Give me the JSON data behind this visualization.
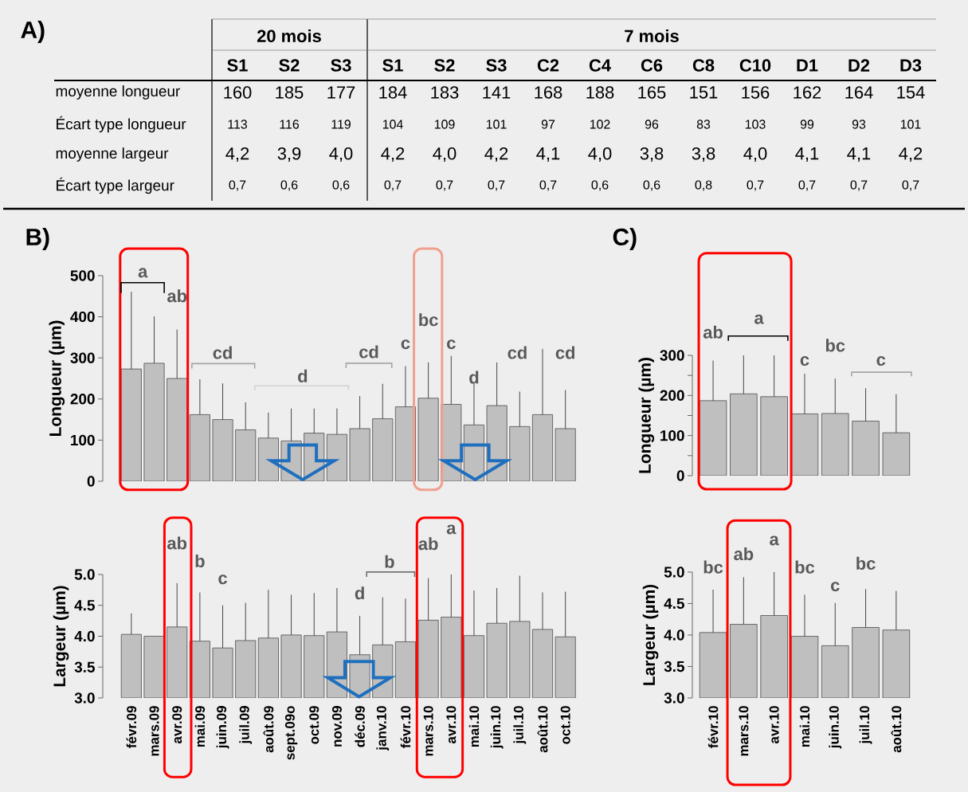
{
  "chart_data": [
    {
      "type": "other",
      "title": "A)",
      "data_labels": true,
      "categories": [
        "S1",
        "S2",
        "S3",
        "S1",
        "S2",
        "S3",
        "C2",
        "C4",
        "C6",
        "C8",
        "C10",
        "D1",
        "D2",
        "D3"
      ],
      "annotations": [
        "20 mois",
        "7 mois"
      ],
      "series": [
        {
          "name": "moyenne longueur",
          "values": [
            160,
            185,
            177,
            184,
            183,
            141,
            168,
            188,
            165,
            151,
            156,
            162,
            164,
            154
          ]
        },
        {
          "name": "Écart type longueur",
          "values": [
            113,
            116,
            119,
            104,
            109,
            101,
            97,
            102,
            96,
            83,
            103,
            99,
            93,
            101
          ]
        },
        {
          "name": "moyenne largeur",
          "values": [
            4.2,
            3.9,
            4.0,
            4.2,
            4.0,
            4.2,
            4.1,
            4.0,
            3.8,
            3.8,
            4.0,
            4.1,
            4.1,
            4.2
          ],
          "value_labels": [
            "4,2",
            "3,9",
            "4,0",
            "4,2",
            "4,0",
            "4,2",
            "4,1",
            "4,0",
            "3,8",
            "3,8",
            "4,0",
            "4,1",
            "4,1",
            "4,2"
          ]
        },
        {
          "name": "Écart type largeur",
          "values": [
            0.7,
            0.6,
            0.6,
            0.7,
            0.7,
            0.7,
            0.7,
            0.6,
            0.6,
            0.8,
            0.7,
            0.7,
            0.7,
            0.7
          ],
          "value_labels": [
            "0,7",
            "0,6",
            "0,6",
            "0,7",
            "0,7",
            "0,7",
            "0,7",
            "0,6",
            "0,6",
            "0,8",
            "0,7",
            "0,7",
            "0,7",
            "0,7"
          ]
        }
      ]
    },
    {
      "type": "bar",
      "title": "B)",
      "ylabel": "Longueur (µm)",
      "tick_labels": "y",
      "color": "#bfbfbf",
      "categories": [
        null,
        null,
        null,
        null,
        null,
        null,
        null,
        null,
        null,
        null,
        null,
        null,
        null,
        null,
        null,
        null,
        null,
        null,
        null,
        null
      ],
      "values": [
        273,
        287,
        250,
        162,
        150,
        125,
        105,
        98,
        117,
        114,
        128,
        152,
        181,
        202,
        187,
        137,
        184,
        133,
        162,
        128
      ],
      "errors": [
        [
          273,
          461
        ],
        [
          287,
          401
        ],
        [
          250,
          369
        ],
        [
          162,
          248
        ],
        [
          150,
          238
        ],
        [
          125,
          192
        ],
        [
          105,
          167
        ],
        [
          98,
          177
        ],
        [
          117,
          177
        ],
        [
          114,
          177
        ],
        [
          128,
          207
        ],
        [
          152,
          237
        ],
        [
          181,
          280
        ],
        [
          202,
          289
        ],
        [
          187,
          305
        ],
        [
          137,
          238
        ],
        [
          184,
          289
        ],
        [
          133,
          218
        ],
        [
          162,
          322
        ],
        [
          128,
          222
        ]
      ],
      "ylim": [
        0,
        500
      ],
      "yticks": [
        0,
        100,
        200,
        300,
        400,
        500
      ],
      "annotations": [
        "a",
        "ab",
        "cd",
        "d",
        "cd",
        "c",
        "bc",
        "c",
        "d",
        "cd",
        "cd"
      ]
    },
    {
      "type": "bar",
      "ylabel": "Largeur (µm)",
      "color": "#bfbfbf",
      "categories": [
        "févr.09",
        "mars.09",
        "avr.09",
        "mai.09",
        "juin.09",
        "juil.09",
        "août.09",
        "sept.09o",
        "oct.09",
        "nov.09",
        "déc.09",
        "janv.10",
        "févr.10",
        "mars.10",
        "avr.10",
        "mai.10",
        "juin.10",
        "juil.10",
        "août.10",
        "oct.10"
      ],
      "values": [
        4.03,
        4.0,
        4.15,
        3.92,
        3.81,
        3.93,
        3.97,
        4.02,
        4.01,
        4.07,
        3.7,
        3.86,
        3.91,
        4.26,
        4.31,
        4.01,
        4.21,
        4.24,
        4.11,
        3.99
      ],
      "errors": [
        [
          4.03,
          4.37
        ],
        null,
        [
          4.15,
          4.86
        ],
        [
          3.92,
          4.71
        ],
        [
          3.81,
          4.5
        ],
        [
          3.93,
          4.54
        ],
        [
          3.97,
          4.75
        ],
        [
          4.02,
          4.67
        ],
        [
          4.01,
          4.7
        ],
        [
          4.07,
          4.78
        ],
        [
          3.7,
          4.33
        ],
        [
          3.86,
          4.63
        ],
        [
          3.91,
          4.61
        ],
        [
          4.26,
          4.94
        ],
        [
          4.31,
          5.0
        ],
        [
          4.01,
          4.74
        ],
        [
          4.21,
          4.78
        ],
        [
          4.24,
          4.98
        ],
        [
          4.11,
          4.71
        ],
        [
          3.99,
          4.72
        ]
      ],
      "ylim": [
        3,
        5
      ],
      "yticks": [
        {
          "value": 3,
          "label": "3.0"
        },
        {
          "value": 3.5,
          "label": "3.5"
        },
        {
          "value": 4,
          "label": "4.0"
        },
        {
          "value": 4.5,
          "label": "4.5"
        },
        {
          "value": 5,
          "label": "5.0"
        }
      ],
      "annotations": [
        "ab",
        "b",
        "c",
        "d",
        "b",
        "ab",
        "a"
      ]
    },
    {
      "type": "bar",
      "title": "C)",
      "ylabel": "Longueur (µm)",
      "tick_labels": "y",
      "color": "#bfbfbf",
      "categories": [
        null,
        null,
        null,
        null,
        null,
        null,
        null
      ],
      "values": [
        187,
        204,
        197,
        154,
        155,
        136,
        107
      ],
      "errors": [
        [
          187,
          287
        ],
        [
          204,
          300
        ],
        [
          197,
          300
        ],
        [
          154,
          254
        ],
        [
          155,
          242
        ],
        [
          136,
          218
        ],
        [
          107,
          203
        ]
      ],
      "ylim": [
        0,
        300
      ],
      "yticks": [
        0,
        {
          "value": 50,
          "label": null
        },
        100,
        {
          "value": 150,
          "label": null
        },
        200,
        {
          "value": 250,
          "label": null
        },
        300
      ],
      "annotations": [
        "ab",
        "a",
        "c",
        "bc",
        "c"
      ]
    },
    {
      "type": "bar",
      "ylabel": "Largeur (µm)",
      "color": "#bfbfbf",
      "categories": [
        "févr.10",
        "mars.10",
        "avr.10",
        "mai.10",
        "juin.10",
        "juil.10",
        "août.10"
      ],
      "values": [
        4.04,
        4.17,
        4.31,
        3.98,
        3.83,
        4.12,
        4.08
      ],
      "errors": [
        [
          4.04,
          4.72
        ],
        [
          4.17,
          4.92
        ],
        [
          4.31,
          5.0
        ],
        [
          3.98,
          4.64
        ],
        [
          3.83,
          4.51
        ],
        [
          4.12,
          4.73
        ],
        [
          4.08,
          4.7
        ]
      ],
      "ylim": [
        3,
        5
      ],
      "yticks": [
        {
          "value": 3,
          "label": "3.0"
        },
        {
          "value": 3.5,
          "label": "3.5"
        },
        {
          "value": 4,
          "label": "4.0"
        },
        {
          "value": 4.5,
          "label": "4.5"
        },
        {
          "value": 5,
          "label": "5.0"
        }
      ],
      "annotations": [
        "bc",
        "ab",
        "a",
        "bc",
        "c",
        "bc"
      ]
    }
  ]
}
